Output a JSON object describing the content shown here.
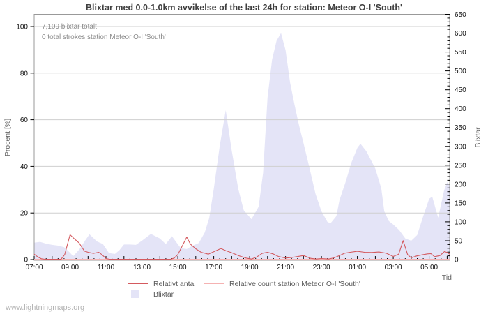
{
  "watermark": {
    "text": "www.lightningmaps.org"
  },
  "chart_data": {
    "type": "area",
    "title": "Blixtar med 0.0-1.0km avvikelse of the last 24h for station: Meteor O-I  'South'",
    "annotations": [
      "7,109 blixtar totalt",
      "0 total strokes station Meteor O-I  'South'"
    ],
    "x_axis": {
      "label": "Tid",
      "tick_labels": [
        "07:00",
        "09:00",
        "11:00",
        "13:00",
        "15:00",
        "17:00",
        "19:00",
        "21:00",
        "23:00",
        "01:00",
        "03:00",
        "05:00"
      ],
      "tick_hours": [
        7,
        9,
        11,
        13,
        15,
        17,
        19,
        21,
        23,
        25,
        27,
        29
      ],
      "range_hours": [
        7,
        30.14
      ],
      "minor_step_hours": 0.3333
    },
    "y_left": {
      "label": "Procent  [%]",
      "ticks": [
        0,
        20,
        40,
        60,
        80,
        100
      ],
      "range": [
        0,
        105
      ]
    },
    "y_right": {
      "label": "Blixtar",
      "ticks": [
        0,
        50,
        100,
        150,
        200,
        250,
        300,
        350,
        400,
        450,
        500,
        550,
        600,
        650
      ],
      "minor_step": 10,
      "range": [
        0,
        650
      ]
    },
    "grid": {
      "horizontal": true,
      "vertical": false,
      "color": "#cfcfcf"
    },
    "legend": {
      "relativt": "Relativt antal",
      "station": "Relative count station Meteor O-I  'South'",
      "blixtar": "Blixtar"
    },
    "colors": {
      "area_fill": "#e4e4f7",
      "relativt_line": "#d45a5f",
      "station_line": "#f5b2b2",
      "box": "#999999",
      "tick": "#000000"
    },
    "series": [
      {
        "name": "Blixtar",
        "type": "area",
        "axis": "right",
        "points": [
          [
            7.0,
            45
          ],
          [
            7.33,
            47
          ],
          [
            7.67,
            42
          ],
          [
            8.0,
            39
          ],
          [
            8.33,
            37
          ],
          [
            8.67,
            33
          ],
          [
            9.0,
            18
          ],
          [
            9.17,
            9
          ],
          [
            9.5,
            26
          ],
          [
            9.83,
            50
          ],
          [
            10.08,
            67
          ],
          [
            10.5,
            48
          ],
          [
            10.83,
            41
          ],
          [
            11.17,
            17
          ],
          [
            11.5,
            15
          ],
          [
            11.75,
            25
          ],
          [
            12.0,
            40
          ],
          [
            12.33,
            40
          ],
          [
            12.67,
            39
          ],
          [
            13.0,
            50
          ],
          [
            13.5,
            68
          ],
          [
            14.0,
            56
          ],
          [
            14.33,
            41
          ],
          [
            14.67,
            62
          ],
          [
            15.17,
            30
          ],
          [
            15.5,
            28
          ],
          [
            15.83,
            37
          ],
          [
            16.17,
            44
          ],
          [
            16.5,
            72
          ],
          [
            16.75,
            110
          ],
          [
            17.0,
            187
          ],
          [
            17.33,
            300
          ],
          [
            17.67,
            396
          ],
          [
            18.0,
            290
          ],
          [
            18.37,
            187
          ],
          [
            18.67,
            131
          ],
          [
            19.1,
            107
          ],
          [
            19.5,
            140
          ],
          [
            19.75,
            230
          ],
          [
            20.0,
            430
          ],
          [
            20.25,
            530
          ],
          [
            20.5,
            580
          ],
          [
            20.75,
            600
          ],
          [
            21.0,
            555
          ],
          [
            21.25,
            470
          ],
          [
            21.5,
            410
          ],
          [
            21.75,
            356
          ],
          [
            22.0,
            309
          ],
          [
            22.33,
            244
          ],
          [
            22.67,
            174
          ],
          [
            23.0,
            128
          ],
          [
            23.33,
            100
          ],
          [
            23.5,
            96
          ],
          [
            23.83,
            115
          ],
          [
            24.0,
            157
          ],
          [
            24.33,
            204
          ],
          [
            24.67,
            257
          ],
          [
            25.0,
            296
          ],
          [
            25.17,
            307
          ],
          [
            25.5,
            287
          ],
          [
            26.0,
            241
          ],
          [
            26.33,
            189
          ],
          [
            26.5,
            128
          ],
          [
            26.75,
            102
          ],
          [
            27.0,
            93
          ],
          [
            27.33,
            78
          ],
          [
            27.67,
            56
          ],
          [
            28.0,
            50
          ],
          [
            28.33,
            65
          ],
          [
            28.67,
            115
          ],
          [
            29.0,
            161
          ],
          [
            29.17,
            167
          ],
          [
            29.5,
            111
          ],
          [
            29.83,
            183
          ],
          [
            30.0,
            205
          ],
          [
            30.14,
            195
          ]
        ]
      },
      {
        "name": "Relative count station Meteor O-I 'South'",
        "type": "line",
        "axis": "left",
        "points": [
          [
            7.0,
            0
          ],
          [
            30.14,
            0
          ]
        ]
      },
      {
        "name": "Relativt antal",
        "type": "line",
        "axis": "left",
        "points": [
          [
            7.0,
            2.2
          ],
          [
            7.2,
            1.0
          ],
          [
            7.4,
            0.2
          ],
          [
            7.6,
            0
          ],
          [
            8.5,
            0
          ],
          [
            8.7,
            2.0
          ],
          [
            9.0,
            10.5
          ],
          [
            9.2,
            9.0
          ],
          [
            9.5,
            7.0
          ],
          [
            9.8,
            3.5
          ],
          [
            10.0,
            3.0
          ],
          [
            10.3,
            2.5
          ],
          [
            10.6,
            3.0
          ],
          [
            10.8,
            1.8
          ],
          [
            11.0,
            0.3
          ],
          [
            11.2,
            0
          ],
          [
            14.6,
            0
          ],
          [
            14.8,
            0.5
          ],
          [
            15.0,
            2.0
          ],
          [
            15.3,
            6.5
          ],
          [
            15.5,
            9.5
          ],
          [
            15.7,
            6.5
          ],
          [
            16.0,
            4.5
          ],
          [
            16.3,
            3.0
          ],
          [
            16.7,
            2.2
          ],
          [
            17.0,
            3.2
          ],
          [
            17.4,
            4.6
          ],
          [
            17.7,
            3.6
          ],
          [
            18.0,
            2.8
          ],
          [
            18.4,
            1.5
          ],
          [
            18.8,
            0.5
          ],
          [
            19.1,
            0.1
          ],
          [
            19.4,
            1.0
          ],
          [
            19.7,
            2.5
          ],
          [
            20.0,
            3.0
          ],
          [
            20.3,
            2.3
          ],
          [
            20.6,
            1.2
          ],
          [
            21.0,
            0.5
          ],
          [
            21.4,
            0.8
          ],
          [
            22.0,
            1.6
          ],
          [
            22.4,
            0.4
          ],
          [
            22.7,
            0.1
          ],
          [
            23.0,
            0.3
          ],
          [
            23.4,
            0.1
          ],
          [
            23.7,
            0.6
          ],
          [
            24.0,
            1.6
          ],
          [
            24.3,
            2.6
          ],
          [
            24.6,
            3.0
          ],
          [
            25.0,
            3.4
          ],
          [
            25.4,
            3.0
          ],
          [
            25.8,
            2.9
          ],
          [
            26.2,
            3.1
          ],
          [
            26.6,
            2.6
          ],
          [
            27.0,
            1.2
          ],
          [
            27.3,
            2.2
          ],
          [
            27.55,
            8.0
          ],
          [
            27.8,
            2.0
          ],
          [
            28.0,
            0.6
          ],
          [
            28.3,
            1.4
          ],
          [
            28.6,
            1.9
          ],
          [
            28.9,
            2.3
          ],
          [
            29.1,
            2.4
          ],
          [
            29.3,
            1.1
          ],
          [
            29.6,
            1.6
          ],
          [
            29.85,
            3.3
          ],
          [
            30.0,
            2.9
          ],
          [
            30.14,
            2.2
          ]
        ]
      }
    ]
  }
}
